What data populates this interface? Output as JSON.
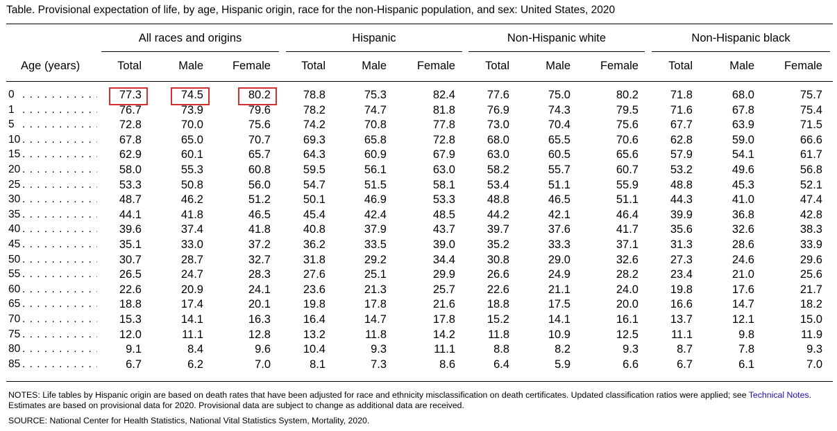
{
  "title": "Table. Provisional expectation of life, by age, Hispanic origin, race for the non-Hispanic population, and sex: United States, 2020",
  "age_header": "Age (years)",
  "groups": [
    {
      "label": "All races and origins"
    },
    {
      "label": "Hispanic"
    },
    {
      "label": "Non-Hispanic white"
    },
    {
      "label": "Non-Hispanic black"
    }
  ],
  "column_headers": [
    "Total",
    "Male",
    "Female",
    "Total",
    "Male",
    "Female",
    "Total",
    "Male",
    "Female",
    "Total",
    "Male",
    "Female"
  ],
  "rows": [
    {
      "age": "0",
      "values": [
        "77.3",
        "74.5",
        "80.2",
        "78.8",
        "75.3",
        "82.4",
        "77.6",
        "75.0",
        "80.2",
        "71.8",
        "68.0",
        "75.7"
      ]
    },
    {
      "age": "1",
      "values": [
        "76.7",
        "73.9",
        "79.6",
        "78.2",
        "74.7",
        "81.8",
        "76.9",
        "74.3",
        "79.5",
        "71.6",
        "67.8",
        "75.4"
      ]
    },
    {
      "age": "5",
      "values": [
        "72.8",
        "70.0",
        "75.6",
        "74.2",
        "70.8",
        "77.8",
        "73.0",
        "70.4",
        "75.6",
        "67.7",
        "63.9",
        "71.5"
      ]
    },
    {
      "age": "10",
      "values": [
        "67.8",
        "65.0",
        "70.7",
        "69.3",
        "65.8",
        "72.8",
        "68.0",
        "65.5",
        "70.6",
        "62.8",
        "59.0",
        "66.6"
      ]
    },
    {
      "age": "15",
      "values": [
        "62.9",
        "60.1",
        "65.7",
        "64.3",
        "60.9",
        "67.9",
        "63.0",
        "60.5",
        "65.6",
        "57.9",
        "54.1",
        "61.7"
      ]
    },
    {
      "age": "20",
      "values": [
        "58.0",
        "55.3",
        "60.8",
        "59.5",
        "56.1",
        "63.0",
        "58.2",
        "55.7",
        "60.7",
        "53.2",
        "49.6",
        "56.8"
      ]
    },
    {
      "age": "25",
      "values": [
        "53.3",
        "50.8",
        "56.0",
        "54.7",
        "51.5",
        "58.1",
        "53.4",
        "51.1",
        "55.9",
        "48.8",
        "45.3",
        "52.1"
      ]
    },
    {
      "age": "30",
      "values": [
        "48.7",
        "46.2",
        "51.2",
        "50.1",
        "46.9",
        "53.3",
        "48.8",
        "46.5",
        "51.1",
        "44.3",
        "41.0",
        "47.4"
      ]
    },
    {
      "age": "35",
      "values": [
        "44.1",
        "41.8",
        "46.5",
        "45.4",
        "42.4",
        "48.5",
        "44.2",
        "42.1",
        "46.4",
        "39.9",
        "36.8",
        "42.8"
      ]
    },
    {
      "age": "40",
      "values": [
        "39.6",
        "37.4",
        "41.8",
        "40.8",
        "37.9",
        "43.7",
        "39.7",
        "37.6",
        "41.7",
        "35.6",
        "32.6",
        "38.3"
      ]
    },
    {
      "age": "45",
      "values": [
        "35.1",
        "33.0",
        "37.2",
        "36.2",
        "33.5",
        "39.0",
        "35.2",
        "33.3",
        "37.1",
        "31.3",
        "28.6",
        "33.9"
      ]
    },
    {
      "age": "50",
      "values": [
        "30.7",
        "28.7",
        "32.7",
        "31.8",
        "29.2",
        "34.4",
        "30.8",
        "29.0",
        "32.6",
        "27.3",
        "24.6",
        "29.6"
      ]
    },
    {
      "age": "55",
      "values": [
        "26.5",
        "24.7",
        "28.3",
        "27.6",
        "25.1",
        "29.9",
        "26.6",
        "24.9",
        "28.2",
        "23.4",
        "21.0",
        "25.6"
      ]
    },
    {
      "age": "60",
      "values": [
        "22.6",
        "20.9",
        "24.1",
        "23.6",
        "21.3",
        "25.7",
        "22.6",
        "21.1",
        "24.0",
        "19.8",
        "17.6",
        "21.7"
      ]
    },
    {
      "age": "65",
      "values": [
        "18.8",
        "17.4",
        "20.1",
        "19.8",
        "17.8",
        "21.6",
        "18.8",
        "17.5",
        "20.0",
        "16.6",
        "14.7",
        "18.2"
      ]
    },
    {
      "age": "70",
      "values": [
        "15.3",
        "14.1",
        "16.3",
        "16.4",
        "14.7",
        "17.8",
        "15.2",
        "14.1",
        "16.1",
        "13.7",
        "12.1",
        "15.0"
      ]
    },
    {
      "age": "75",
      "values": [
        "12.0",
        "11.1",
        "12.8",
        "13.2",
        "11.8",
        "14.2",
        "11.8",
        "10.9",
        "12.5",
        "11.1",
        "9.8",
        "11.9"
      ]
    },
    {
      "age": "80",
      "values": [
        "9.1",
        "8.4",
        "9.6",
        "10.4",
        "9.3",
        "11.1",
        "8.8",
        "8.2",
        "9.3",
        "8.7",
        "7.8",
        "9.3"
      ]
    },
    {
      "age": "85",
      "values": [
        "6.7",
        "6.2",
        "7.0",
        "8.1",
        "7.3",
        "8.6",
        "6.4",
        "5.9",
        "6.6",
        "6.7",
        "6.1",
        "7.0"
      ]
    }
  ],
  "highlighted_cells": [
    {
      "row": 0,
      "col": 0
    },
    {
      "row": 0,
      "col": 1
    },
    {
      "row": 0,
      "col": 2
    }
  ],
  "highlight_color": "#d32f2f",
  "link_color": "#1a0dab",
  "dot_leader": ". . . . . . . . . . . . . . .",
  "notes": {
    "prefix": "NOTES: Life tables by Hispanic origin are based on death rates that have been adjusted for race and ethnicity misclassification on death certificates. Updated classification ratios were applied; see ",
    "link_text": "Technical Notes",
    "suffix": ". Estimates are based on provisional data for 2020. Provisional data are subject to change as additional data are received."
  },
  "source": "SOURCE: National Center for Health Statistics, National Vital Statistics System, Mortality, 2020."
}
